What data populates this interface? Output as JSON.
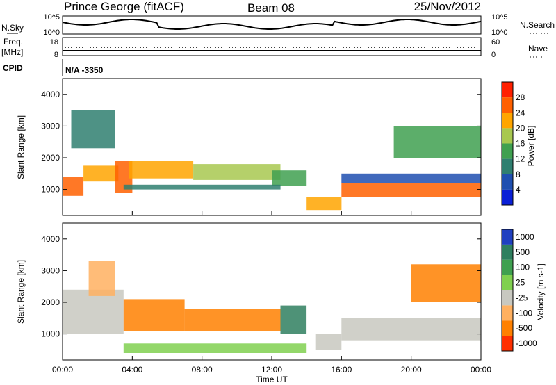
{
  "header": {
    "station": "Prince George (fitACF)",
    "beam": "Beam 08",
    "date": "25/Nov/2012"
  },
  "noise_panel": {
    "left_label": "N.Sky",
    "right_label": "N.Search",
    "left_ticks": [
      "10^5",
      "10^0"
    ],
    "right_ticks": [
      "10^5",
      "10^0"
    ]
  },
  "freq_panel": {
    "left_label_top": "Freq.",
    "left_label_bottom": "[MHz]",
    "right_label": "Nave",
    "left_ticks": [
      "18",
      "8"
    ],
    "right_ticks": [
      "60",
      "0"
    ]
  },
  "cpid": {
    "label": "CPID",
    "value": "N/A -3350"
  },
  "colors": {
    "power": [
      "#0a1fd6",
      "#1f4fb0",
      "#2f7f70",
      "#3fa050",
      "#a8c850",
      "#ffa500",
      "#ff6000",
      "#ff2000"
    ],
    "velocity": [
      "#2040c0",
      "#2f7f5f",
      "#3fa050",
      "#80d050",
      "#c8c8c0",
      "#ffb060",
      "#ff8000",
      "#ff3000"
    ]
  },
  "chart_data": [
    {
      "type": "heatmap",
      "name": "power",
      "ylabel": "Slant Range [km]",
      "yticks": [
        "1000",
        "2000",
        "3000",
        "4000"
      ],
      "ylim": [
        180,
        4500
      ],
      "xlim": [
        0,
        24
      ],
      "colorbar": {
        "label": "Power [dB]",
        "ticks": [
          "4",
          "8",
          "12",
          "16",
          "20",
          "24",
          "28"
        ],
        "range": [
          0,
          32
        ]
      },
      "bands": [
        {
          "x0": 0.0,
          "x1": 1.2,
          "y0": 800,
          "y1": 1400,
          "level": 6
        },
        {
          "x0": 1.2,
          "x1": 3.2,
          "y0": 1250,
          "y1": 1750,
          "level": 5
        },
        {
          "x0": 3.0,
          "x1": 4.0,
          "y0": 900,
          "y1": 1900,
          "level": 6
        },
        {
          "x0": 3.8,
          "x1": 7.5,
          "y0": 1350,
          "y1": 1900,
          "level": 5
        },
        {
          "x0": 7.5,
          "x1": 12.5,
          "y0": 1300,
          "y1": 1800,
          "level": 4
        },
        {
          "x0": 12.0,
          "x1": 14.0,
          "y0": 1100,
          "y1": 1600,
          "level": 3
        },
        {
          "x0": 14.0,
          "x1": 16.0,
          "y0": 350,
          "y1": 750,
          "level": 5
        },
        {
          "x0": 16.0,
          "x1": 24.0,
          "y0": 750,
          "y1": 1200,
          "level": 6
        },
        {
          "x0": 16.0,
          "x1": 24.0,
          "y0": 1200,
          "y1": 1500,
          "level": 1
        },
        {
          "x0": 0.5,
          "x1": 3.0,
          "y0": 2300,
          "y1": 3500,
          "level": 2
        },
        {
          "x0": 19.0,
          "x1": 24.0,
          "y0": 2000,
          "y1": 3000,
          "level": 3
        },
        {
          "x0": 3.5,
          "x1": 12.5,
          "y0": 1000,
          "y1": 1150,
          "level": 2
        }
      ],
      "x_axis": {
        "title": "Time UT",
        "ticks": [
          "00:00",
          "04:00",
          "08:00",
          "12:00",
          "16:00",
          "20:00",
          "00:00"
        ]
      }
    },
    {
      "type": "heatmap",
      "name": "velocity",
      "ylabel": "Slant Range [km]",
      "yticks": [
        "1000",
        "2000",
        "3000",
        "4000"
      ],
      "ylim": [
        180,
        4500
      ],
      "xlim": [
        0,
        24
      ],
      "colorbar": {
        "label": "Velocity [m s-1]",
        "ticks": [
          "1000",
          "500",
          "100",
          "25",
          "-25",
          "-100",
          "-500",
          "-1000"
        ]
      },
      "bands": [
        {
          "x0": 0.0,
          "x1": 3.5,
          "y0": 1000,
          "y1": 2400,
          "level": 4
        },
        {
          "x0": 1.5,
          "x1": 3.0,
          "y0": 2200,
          "y1": 3300,
          "level": 5
        },
        {
          "x0": 3.5,
          "x1": 7.0,
          "y0": 1100,
          "y1": 2100,
          "level": 6
        },
        {
          "x0": 7.0,
          "x1": 12.5,
          "y0": 1100,
          "y1": 1800,
          "level": 6
        },
        {
          "x0": 12.5,
          "x1": 14.0,
          "y0": 1000,
          "y1": 1900,
          "level": 1
        },
        {
          "x0": 14.5,
          "x1": 16.0,
          "y0": 500,
          "y1": 1000,
          "level": 4
        },
        {
          "x0": 16.0,
          "x1": 24.0,
          "y0": 800,
          "y1": 1500,
          "level": 4
        },
        {
          "x0": 20.0,
          "x1": 24.0,
          "y0": 2000,
          "y1": 3200,
          "level": 6
        },
        {
          "x0": 3.5,
          "x1": 14.0,
          "y0": 400,
          "y1": 700,
          "level": 3
        }
      ],
      "x_axis": {
        "title": "Time UT",
        "ticks": [
          "00:00",
          "04:00",
          "08:00",
          "12:00",
          "16:00",
          "20:00",
          "00:00"
        ]
      }
    }
  ]
}
